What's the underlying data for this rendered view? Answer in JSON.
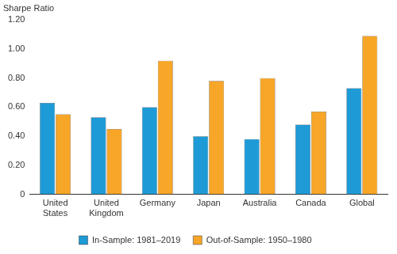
{
  "chart_data": {
    "type": "bar",
    "y_label": "Sharpe Ratio",
    "categories": [
      "United States",
      "United Kingdom",
      "Germany",
      "Japan",
      "Australia",
      "Canada",
      "Global"
    ],
    "series": [
      {
        "name": "In-Sample: 1981–2019",
        "color": "#1e9bd7",
        "values": [
          0.63,
          0.53,
          0.6,
          0.4,
          0.38,
          0.48,
          0.73
        ]
      },
      {
        "name": "Out-of-Sample: 1950–1980",
        "color": "#f8a628",
        "values": [
          0.55,
          0.45,
          0.92,
          0.78,
          0.8,
          0.57,
          1.09
        ]
      }
    ],
    "ylim": [
      0,
      1.2
    ],
    "yticks": [
      0,
      {
        "value": 0.2,
        "label": "0.20"
      },
      {
        "value": 0.4,
        "label": "0.40"
      },
      {
        "value": 0.6,
        "label": "0.60"
      },
      {
        "value": 0.8,
        "label": "0.80"
      },
      {
        "value": 1.0,
        "label": "1.00"
      },
      {
        "value": 1.2,
        "label": "1.20"
      }
    ],
    "grid": false,
    "legend": "bottom"
  }
}
